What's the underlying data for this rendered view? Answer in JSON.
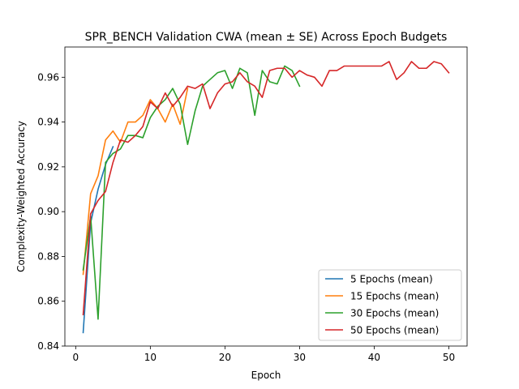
{
  "chart_data": {
    "type": "line",
    "title": "SPR_BENCH Validation CWA (mean ± SE) Across Epoch Budgets",
    "xlabel": "Epoch",
    "ylabel": "Complexity-Weighted Accuracy",
    "xlim": [
      -1.45,
      52.45
    ],
    "ylim": [
      0.84,
      0.9735
    ],
    "xticks": [
      0,
      10,
      20,
      30,
      40,
      50
    ],
    "yticks": [
      0.84,
      0.86,
      0.88,
      0.9,
      0.92,
      0.94,
      0.96
    ],
    "grid": false,
    "legend_position": "lower-right",
    "series": [
      {
        "name": "5 Epochs (mean)",
        "color": "#1f77b4",
        "x": [
          1,
          2,
          3,
          4,
          5
        ],
        "y": [
          0.846,
          0.895,
          0.91,
          0.921,
          0.929
        ]
      },
      {
        "name": "15 Epochs (mean)",
        "color": "#ff7f0e",
        "x": [
          1,
          2,
          3,
          4,
          5,
          6,
          7,
          8,
          9,
          10,
          11,
          12,
          13,
          14,
          15
        ],
        "y": [
          0.872,
          0.908,
          0.916,
          0.932,
          0.936,
          0.931,
          0.94,
          0.94,
          0.943,
          0.95,
          0.946,
          0.94,
          0.948,
          0.939,
          0.955
        ]
      },
      {
        "name": "30 Epochs (mean)",
        "color": "#2ca02c",
        "x": [
          1,
          2,
          3,
          4,
          5,
          6,
          7,
          8,
          9,
          10,
          11,
          12,
          13,
          14,
          15,
          16,
          17,
          18,
          19,
          20,
          21,
          22,
          23,
          24,
          25,
          26,
          27,
          28,
          29,
          30
        ],
        "y": [
          0.874,
          0.898,
          0.852,
          0.922,
          0.926,
          0.928,
          0.934,
          0.934,
          0.933,
          0.942,
          0.947,
          0.95,
          0.955,
          0.948,
          0.93,
          0.945,
          0.956,
          0.959,
          0.962,
          0.963,
          0.955,
          0.964,
          0.962,
          0.943,
          0.963,
          0.958,
          0.957,
          0.965,
          0.963,
          0.956
        ]
      },
      {
        "name": "50 Epochs (mean)",
        "color": "#d62728",
        "x": [
          1,
          2,
          3,
          4,
          5,
          6,
          7,
          8,
          9,
          10,
          11,
          12,
          13,
          14,
          15,
          16,
          17,
          18,
          19,
          20,
          21,
          22,
          23,
          24,
          25,
          26,
          27,
          28,
          29,
          30,
          31,
          32,
          33,
          34,
          35,
          36,
          37,
          38,
          39,
          40,
          41,
          42,
          43,
          44,
          45,
          46,
          47,
          48,
          49,
          50
        ],
        "y": [
          0.854,
          0.899,
          0.905,
          0.909,
          0.922,
          0.932,
          0.931,
          0.934,
          0.938,
          0.949,
          0.946,
          0.953,
          0.947,
          0.951,
          0.956,
          0.955,
          0.957,
          0.946,
          0.953,
          0.957,
          0.958,
          0.962,
          0.958,
          0.956,
          0.951,
          0.963,
          0.964,
          0.964,
          0.96,
          0.963,
          0.961,
          0.96,
          0.956,
          0.963,
          0.963,
          0.965,
          0.965,
          0.965,
          0.965,
          0.965,
          0.965,
          0.967,
          0.959,
          0.962,
          0.967,
          0.964,
          0.964,
          0.967,
          0.966,
          0.962
        ]
      }
    ]
  }
}
